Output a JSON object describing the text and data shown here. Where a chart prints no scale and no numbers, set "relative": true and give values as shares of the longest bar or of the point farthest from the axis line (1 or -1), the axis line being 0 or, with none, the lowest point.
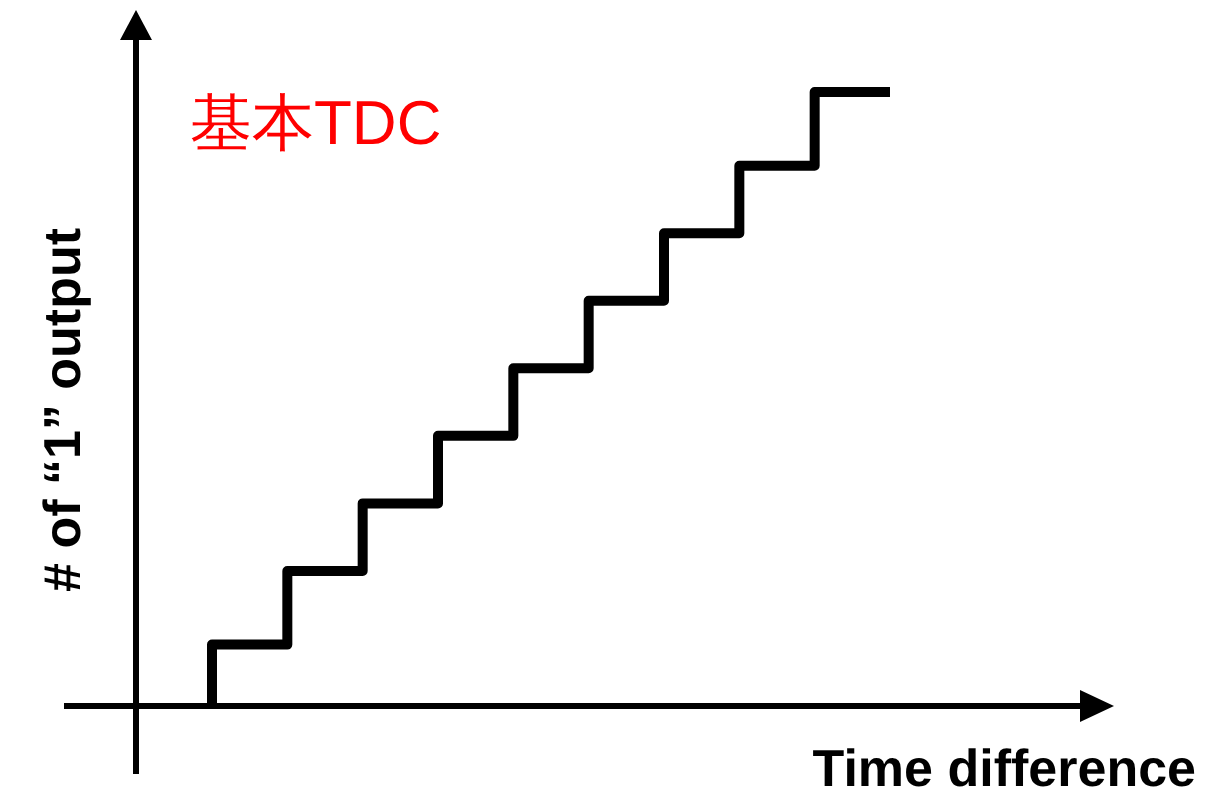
{
  "chart_data": {
    "type": "step",
    "title": "基本TDC",
    "xlabel": "Time difference",
    "ylabel": "# of “1” output",
    "categories": [
      null,
      null,
      null,
      null,
      null,
      null,
      null,
      null,
      null,
      null
    ],
    "values": [
      0,
      0.1,
      0.22,
      0.33,
      0.44,
      0.55,
      0.66,
      0.77,
      0.88,
      1.0
    ],
    "color": "#000000",
    "relative": true
  }
}
